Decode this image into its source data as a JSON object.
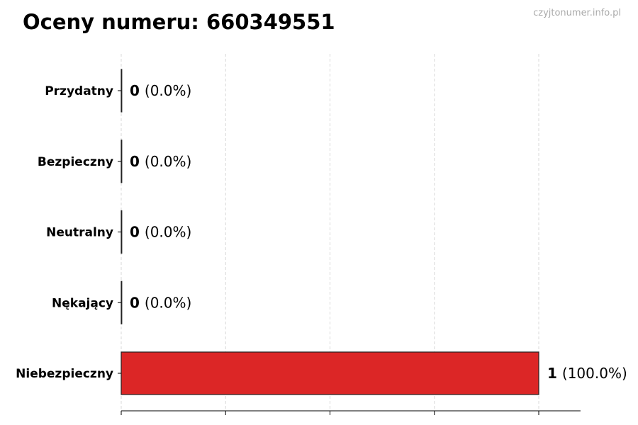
{
  "chart_data": {
    "type": "bar",
    "orientation": "horizontal",
    "title": "Oceny numeru: 660349551",
    "watermark": "czyjtonumer.info.pl",
    "categories": [
      "Przydatny",
      "Bezpieczny",
      "Neutralny",
      "Nękający",
      "Niebezpieczny"
    ],
    "values": [
      0,
      0,
      0,
      0,
      1
    ],
    "value_labels": [
      "(0.0%)",
      "(0.0%)",
      "(0.0%)",
      "(0.0%)",
      "(100.0%)"
    ],
    "xlim": [
      0,
      1.1
    ],
    "xticks": [
      0,
      0.25,
      0.5,
      0.75,
      1
    ],
    "grid": true,
    "colors": {
      "bar": "#dc2626",
      "edge": "#222222",
      "watermark": "#aaaaaa"
    }
  }
}
